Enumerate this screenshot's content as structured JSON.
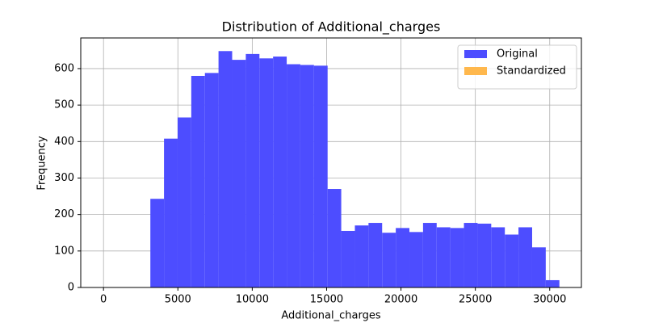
{
  "chart_data": {
    "type": "histogram",
    "title": "Distribution of Additional_charges",
    "x_label": "Additional_charges",
    "y_label": "Frequency",
    "bins": [
      3150,
      4067,
      4983,
      5900,
      6817,
      7733,
      8650,
      9567,
      10483,
      11400,
      12317,
      13233,
      14150,
      15067,
      15983,
      16900,
      17817,
      18733,
      19650,
      20567,
      21483,
      22400,
      23317,
      24233,
      25150,
      26067,
      26983,
      27900,
      28817,
      29733,
      30650
    ],
    "series": [
      {
        "name": "Original",
        "color": "#4d4dff",
        "values": [
          243,
          408,
          466,
          580,
          588,
          648,
          624,
          640,
          628,
          633,
          612,
          610,
          608,
          270,
          155,
          170,
          177,
          150,
          163,
          152,
          177,
          165,
          163,
          177,
          175,
          165,
          145,
          165,
          110,
          20
        ]
      },
      {
        "name": "Standardized",
        "color": "#ffb84d"
      }
    ],
    "xlim": [
      -1530,
      32130
    ],
    "ylim": [
      0,
      684
    ],
    "xticks": [
      0,
      5000,
      10000,
      15000,
      20000,
      25000,
      30000
    ],
    "yticks": [
      0,
      100,
      200,
      300,
      400,
      500,
      600
    ],
    "grid": true,
    "legend": "upper right"
  }
}
